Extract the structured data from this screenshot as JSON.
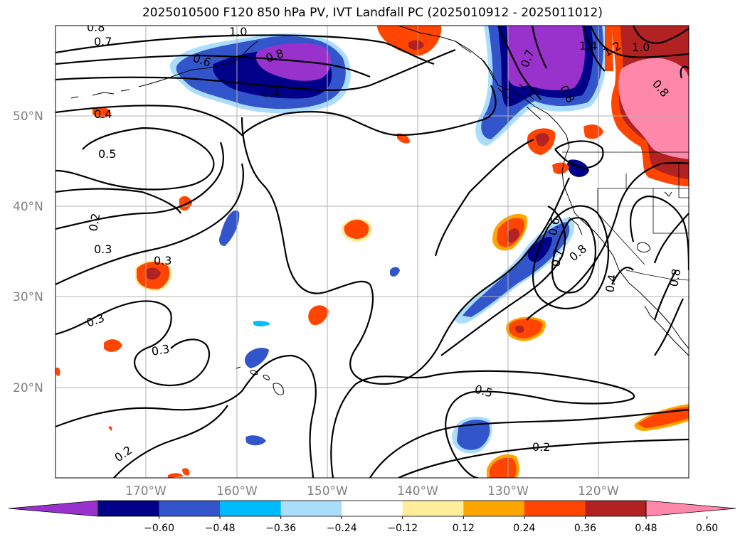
{
  "title": "2025010500 F120 850 hPa PV, IVT Landfall PC (2025010912 - 2025011012)",
  "map": {
    "lat_labels": [
      "50°N",
      "40°N",
      "30°N",
      "20°N"
    ],
    "lon_labels": [
      "170°W",
      "160°W",
      "150°W",
      "140°W",
      "130°W",
      "120°W"
    ],
    "contour_labels": [
      "0.8",
      "0.7",
      "1.0",
      "0.6",
      "0.8",
      "0.4",
      "0.4",
      "0.5",
      "0.2",
      "0.3",
      "0.3",
      "0.3",
      "0.3",
      "0.2",
      "0.5",
      "0.2",
      "1.4",
      "1.2",
      "1.0",
      "0.8",
      "0.7",
      "0.8",
      "0.6",
      "0.7",
      "0.8",
      "0.4",
      "0.8"
    ]
  },
  "colorbar": {
    "colors": [
      "#9932cc",
      "#000088",
      "#3355cc",
      "#00bbff",
      "#aaddff",
      "#ffffff",
      "#ffee99",
      "#ffa500",
      "#ff4500",
      "#b22222",
      "#ff88aa"
    ],
    "tick_labels": [
      "−0.60",
      "−0.48",
      "−0.36",
      "−0.24",
      "−0.12",
      "0.12",
      "0.24",
      "0.36",
      "0.48",
      "0.60"
    ]
  }
}
